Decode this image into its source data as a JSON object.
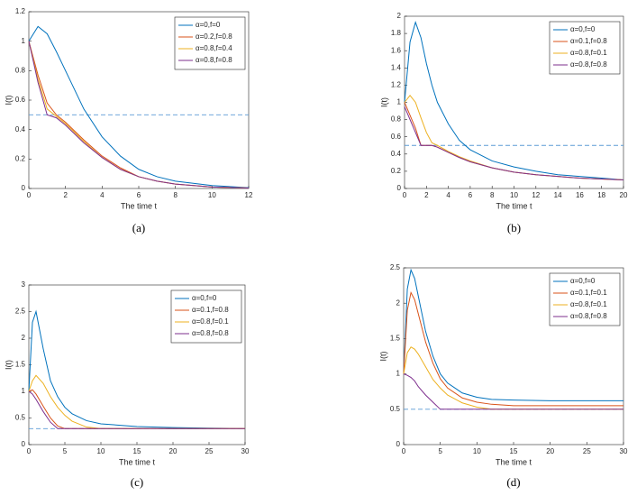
{
  "chart_data": [
    {
      "type": "line",
      "caption": "(a)",
      "xlabel": "The time t",
      "ylabel": "I(t)",
      "x": [
        0,
        0.5,
        1,
        1.5,
        2,
        3,
        4,
        5,
        6,
        7,
        8,
        10,
        12
      ],
      "xlim": [
        0,
        12
      ],
      "xticks": [
        0,
        2,
        4,
        6,
        8,
        10,
        12
      ],
      "ylim": [
        0,
        1.2
      ],
      "yticks": [
        0,
        0.2,
        0.4,
        0.6,
        0.8,
        1,
        1.2
      ],
      "hline": {
        "value": 0.5,
        "color": "#5b9bd5"
      },
      "legend": "upper right",
      "series": [
        {
          "name": "α=0,f=0",
          "color": "#0072bd",
          "values": [
            1,
            1.1,
            1.05,
            0.93,
            0.8,
            0.54,
            0.35,
            0.22,
            0.13,
            0.08,
            0.05,
            0.02,
            0.005
          ]
        },
        {
          "name": "α=0.2,f=0.8",
          "color": "#d95319",
          "values": [
            1,
            0.77,
            0.58,
            0.5,
            0.45,
            0.33,
            0.22,
            0.14,
            0.08,
            0.05,
            0.03,
            0.01,
            0.003
          ]
        },
        {
          "name": "α=0.8,f=0.4",
          "color": "#edb120",
          "values": [
            1,
            0.74,
            0.54,
            0.49,
            0.44,
            0.32,
            0.21,
            0.13,
            0.08,
            0.05,
            0.03,
            0.01,
            0.003
          ]
        },
        {
          "name": "α=0.8,f=0.8",
          "color": "#7e2f8e",
          "values": [
            1,
            0.72,
            0.5,
            0.48,
            0.43,
            0.31,
            0.21,
            0.13,
            0.08,
            0.05,
            0.03,
            0.01,
            0.003
          ]
        }
      ]
    },
    {
      "type": "line",
      "caption": "(b)",
      "xlabel": "The time t",
      "ylabel": "I(t)",
      "x": [
        0,
        0.5,
        1,
        1.5,
        2,
        2.5,
        3,
        4,
        5,
        6,
        8,
        10,
        12,
        14,
        16,
        18,
        20
      ],
      "xlim": [
        0,
        20
      ],
      "xticks": [
        0,
        2,
        4,
        6,
        8,
        10,
        12,
        14,
        16,
        18,
        20
      ],
      "ylim": [
        0,
        2
      ],
      "yticks": [
        0,
        0.2,
        0.4,
        0.6,
        0.8,
        1,
        1.2,
        1.4,
        1.6,
        1.8,
        2
      ],
      "hline": {
        "value": 0.5,
        "color": "#5b9bd5"
      },
      "legend": "upper right",
      "series": [
        {
          "name": "α=0,f=0",
          "color": "#0072bd",
          "values": [
            1,
            1.7,
            1.93,
            1.75,
            1.45,
            1.2,
            1.0,
            0.75,
            0.56,
            0.45,
            0.32,
            0.25,
            0.2,
            0.16,
            0.14,
            0.12,
            0.1
          ]
        },
        {
          "name": "α=0.1,f=0.8",
          "color": "#d95319",
          "values": [
            1,
            0.85,
            0.7,
            0.5,
            0.5,
            0.5,
            0.48,
            0.42,
            0.36,
            0.31,
            0.24,
            0.19,
            0.16,
            0.14,
            0.12,
            0.11,
            0.1
          ]
        },
        {
          "name": "α=0.8,f=0.1",
          "color": "#edb120",
          "values": [
            1,
            1.08,
            1.0,
            0.82,
            0.65,
            0.53,
            0.5,
            0.43,
            0.37,
            0.32,
            0.24,
            0.19,
            0.16,
            0.14,
            0.12,
            0.11,
            0.1
          ]
        },
        {
          "name": "α=0.8,f=0.8",
          "color": "#7e2f8e",
          "values": [
            0.95,
            0.8,
            0.65,
            0.5,
            0.5,
            0.5,
            0.48,
            0.42,
            0.36,
            0.31,
            0.24,
            0.19,
            0.16,
            0.14,
            0.12,
            0.11,
            0.1
          ]
        }
      ]
    },
    {
      "type": "line",
      "caption": "(c)",
      "xlabel": "The time t",
      "ylabel": "I(t)",
      "x": [
        0,
        0.5,
        1,
        2,
        3,
        4,
        5,
        6,
        8,
        10,
        15,
        20,
        25,
        30
      ],
      "xlim": [
        0,
        30
      ],
      "xticks": [
        0,
        5,
        10,
        15,
        20,
        25,
        30
      ],
      "ylim": [
        0,
        3
      ],
      "yticks": [
        0,
        0.5,
        1,
        1.5,
        2,
        2.5,
        3
      ],
      "hline": {
        "value": 0.3,
        "color": "#5b9bd5"
      },
      "legend": "upper right",
      "series": [
        {
          "name": "α=0,f=0",
          "color": "#0072bd",
          "values": [
            1,
            2.3,
            2.5,
            1.8,
            1.2,
            0.9,
            0.7,
            0.58,
            0.45,
            0.39,
            0.34,
            0.32,
            0.31,
            0.3
          ]
        },
        {
          "name": "α=0.1,f=0.8",
          "color": "#d95319",
          "values": [
            1,
            1.03,
            0.95,
            0.72,
            0.5,
            0.35,
            0.3,
            0.3,
            0.3,
            0.3,
            0.3,
            0.3,
            0.3,
            0.3
          ]
        },
        {
          "name": "α=0.8,f=0.1",
          "color": "#edb120",
          "values": [
            1,
            1.2,
            1.3,
            1.15,
            0.9,
            0.7,
            0.55,
            0.44,
            0.33,
            0.3,
            0.3,
            0.3,
            0.3,
            0.3
          ]
        },
        {
          "name": "α=0.8,f=0.8",
          "color": "#7e2f8e",
          "values": [
            1,
            0.95,
            0.85,
            0.62,
            0.42,
            0.3,
            0.3,
            0.3,
            0.3,
            0.3,
            0.3,
            0.3,
            0.3,
            0.3
          ]
        }
      ]
    },
    {
      "type": "line",
      "caption": "(d)",
      "xlabel": "The time t",
      "ylabel": "I(t)",
      "x": [
        0,
        0.5,
        1,
        1.5,
        2,
        3,
        4,
        5,
        6,
        8,
        10,
        12,
        15,
        20,
        25,
        30
      ],
      "xlim": [
        0,
        30
      ],
      "xticks": [
        0,
        5,
        10,
        15,
        20,
        25,
        30
      ],
      "ylim": [
        0,
        2.5
      ],
      "yticks": [
        0,
        0.5,
        1,
        1.5,
        2,
        2.5
      ],
      "hline": {
        "value": 0.5,
        "color": "#5b9bd5"
      },
      "legend": "upper right",
      "series": [
        {
          "name": "α=0,f=0",
          "color": "#0072bd",
          "values": [
            1,
            2.2,
            2.47,
            2.35,
            2.1,
            1.6,
            1.25,
            1.0,
            0.87,
            0.73,
            0.67,
            0.64,
            0.63,
            0.62,
            0.62,
            0.62
          ]
        },
        {
          "name": "α=0.1,f=0.1",
          "color": "#d95319",
          "values": [
            1,
            1.9,
            2.15,
            2.05,
            1.85,
            1.45,
            1.15,
            0.93,
            0.8,
            0.66,
            0.6,
            0.57,
            0.55,
            0.55,
            0.55,
            0.55
          ]
        },
        {
          "name": "α=0.8,f=0.1",
          "color": "#edb120",
          "values": [
            1,
            1.3,
            1.38,
            1.35,
            1.28,
            1.1,
            0.92,
            0.8,
            0.7,
            0.59,
            0.53,
            0.5,
            0.5,
            0.5,
            0.5,
            0.5
          ]
        },
        {
          "name": "α=0.8,f=0.8",
          "color": "#7e2f8e",
          "values": [
            1,
            0.98,
            0.95,
            0.9,
            0.82,
            0.7,
            0.6,
            0.5,
            0.5,
            0.5,
            0.5,
            0.5,
            0.5,
            0.5,
            0.5,
            0.5
          ]
        }
      ]
    }
  ]
}
